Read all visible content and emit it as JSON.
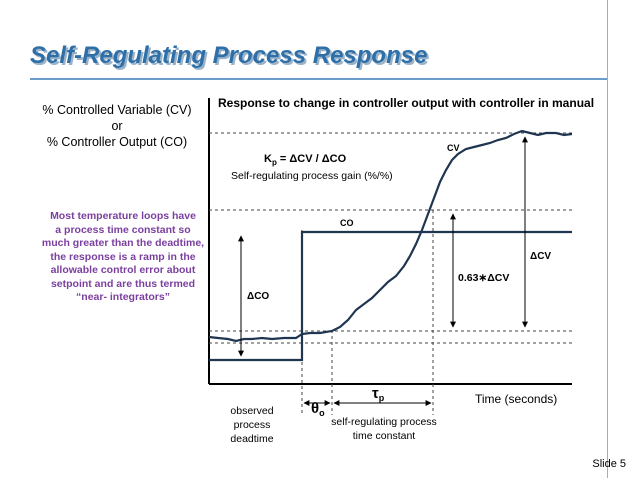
{
  "title": "Self-Regulating Process Response",
  "y_axis_label": {
    "line1": "% Controlled Variable (CV)",
    "line2": "or",
    "line3": "% Controller Output (CO)"
  },
  "side_note": [
    "Most temperature loops have",
    "a process time constant so",
    "much greater than the deadtime,",
    "the response is a ramp in the",
    "allowable control error about",
    "setpoint and are thus termed",
    "“near- integrators”"
  ],
  "diagram": {
    "heading": "Response to change in controller output with controller in manual",
    "gain_formula": "Kp = ΔCV / ΔCO",
    "gain_formula_parts": {
      "k": "K",
      "sub": "p",
      "rest": " = ΔCV / ΔCO"
    },
    "gain_description": "Self-regulating process gain (%/%)",
    "cv_label": "CV",
    "co_label": "CO",
    "delta_co_label": "ΔCO",
    "delta_cv_label": "ΔCV",
    "tau_level_label": "0.63∗ΔCV",
    "x_axis_label": "Time (seconds)",
    "deadtime_symbol": "θ",
    "deadtime_sub": "o",
    "tau_symbol": "τ",
    "tau_sub": "p",
    "deadtime_label": [
      "observed",
      "process",
      "deadtime"
    ],
    "tau_label": [
      "self-regulating process",
      "time constant"
    ]
  },
  "footer": {
    "slide": "Slide 5"
  },
  "colors": {
    "title": "#2f6fa8",
    "title_shadow": "#9bb3c9",
    "note": "#7b3fa0",
    "rule": "#6a9ccc",
    "co_line": "#1f3550"
  }
}
